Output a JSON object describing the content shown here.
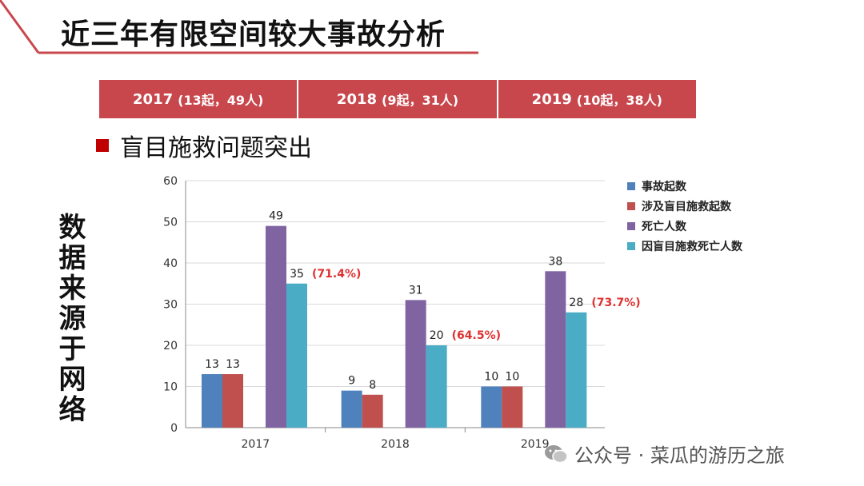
{
  "title": "近三年有限空间较大事故分析",
  "year_summary": [
    {
      "year": "2017",
      "detail": "(13起，49人)"
    },
    {
      "year": "2018",
      "detail": "(9起，31人)"
    },
    {
      "year": "2019",
      "detail": "(10起，38人)"
    }
  ],
  "bullet_text": "盲目施救问题突出",
  "source_note": "数据来源于网络",
  "watermark": {
    "text": "公众号 · 菜瓜的游历之旅",
    "icon": "wechat-icon"
  },
  "colors": {
    "accent": "#c8474d",
    "bullet": "#c00000",
    "series": [
      "#4f81bd",
      "#c0504d",
      "#8064a2",
      "#4bacc6"
    ],
    "percent_label": "#e03030"
  },
  "chart_data": {
    "type": "bar",
    "categories": [
      "2017",
      "2018",
      "2019"
    ],
    "series": [
      {
        "name": "事故起数",
        "values": [
          13,
          9,
          10
        ]
      },
      {
        "name": "涉及盲目施救起数",
        "values": [
          13,
          8,
          10
        ]
      },
      {
        "name": "死亡人数",
        "values": [
          49,
          31,
          38
        ]
      },
      {
        "name": "因盲目施救死亡人数",
        "values": [
          35,
          20,
          28
        ]
      }
    ],
    "annotations": [
      "(71.4%)",
      "(64.5%)",
      "(73.7%)"
    ],
    "yticks": [
      0,
      10,
      20,
      30,
      40,
      50,
      60
    ],
    "ylim": [
      0,
      60
    ],
    "grid": true,
    "legend": "right"
  }
}
